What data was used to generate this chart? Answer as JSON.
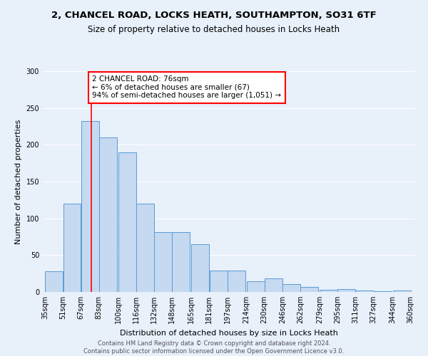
{
  "title_line1": "2, CHANCEL ROAD, LOCKS HEATH, SOUTHAMPTON, SO31 6TF",
  "title_line2": "Size of property relative to detached houses in Locks Heath",
  "xlabel": "Distribution of detached houses by size in Locks Heath",
  "ylabel": "Number of detached properties",
  "bar_color": "#c5d9f1",
  "bar_edge_color": "#5b9bd5",
  "vline_color": "red",
  "vline_x": 76,
  "annotation_text": "2 CHANCEL ROAD: 76sqm\n← 6% of detached houses are smaller (67)\n94% of semi-detached houses are larger (1,051) →",
  "annotation_box_color": "white",
  "annotation_box_edge": "red",
  "footer_line1": "Contains HM Land Registry data © Crown copyright and database right 2024.",
  "footer_line2": "Contains public sector information licensed under the Open Government Licence v3.0.",
  "bins_left": [
    35,
    51,
    67,
    83,
    100,
    116,
    132,
    148,
    165,
    181,
    197,
    214,
    230,
    246,
    262,
    279,
    295,
    311,
    327,
    344
  ],
  "bin_width": 16,
  "bar_heights": [
    28,
    120,
    232,
    210,
    190,
    120,
    81,
    81,
    65,
    29,
    29,
    15,
    18,
    11,
    7,
    3,
    4,
    2,
    1,
    2
  ],
  "tick_labels": [
    "35sqm",
    "51sqm",
    "67sqm",
    "83sqm",
    "100sqm",
    "116sqm",
    "132sqm",
    "148sqm",
    "165sqm",
    "181sqm",
    "197sqm",
    "214sqm",
    "230sqm",
    "246sqm",
    "262sqm",
    "279sqm",
    "295sqm",
    "311sqm",
    "327sqm",
    "344sqm",
    "360sqm"
  ],
  "ylim": [
    0,
    300
  ],
  "yticks": [
    0,
    50,
    100,
    150,
    200,
    250,
    300
  ],
  "background_color": "#e8f0fa",
  "plot_bg_color": "#e8f0fa",
  "grid_color": "white",
  "title_fontsize": 9.5,
  "subtitle_fontsize": 8.5,
  "axis_label_fontsize": 8,
  "tick_fontsize": 7,
  "footer_fontsize": 6
}
